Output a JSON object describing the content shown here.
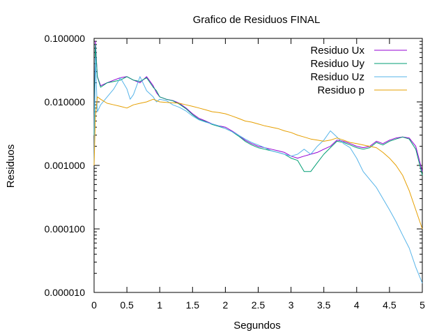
{
  "chart_data": {
    "type": "line",
    "title": "Grafico de Residuos FINAL",
    "xlabel": "Segundos",
    "ylabel": "Residuos",
    "xlim": [
      0,
      5
    ],
    "ylim": [
      1e-05,
      0.1
    ],
    "yscale": "log",
    "x_ticks": [
      "0",
      "0.5",
      "1",
      "1.5",
      "2",
      "2.5",
      "3",
      "3.5",
      "4",
      "4.5",
      "5"
    ],
    "y_ticks": [
      "0.000010",
      "0.000100",
      "0.001000",
      "0.010000",
      "0.100000"
    ],
    "legend_position": "top-right",
    "grid": false,
    "series": [
      {
        "name": "Residuo Ux",
        "color": "#9400d3",
        "x": [
          0.0,
          0.02,
          0.05,
          0.1,
          0.2,
          0.3,
          0.4,
          0.5,
          0.6,
          0.7,
          0.8,
          0.9,
          0.95,
          1.0,
          1.1,
          1.2,
          1.3,
          1.4,
          1.5,
          1.6,
          1.7,
          1.8,
          1.9,
          2.0,
          2.1,
          2.2,
          2.3,
          2.4,
          2.5,
          2.6,
          2.7,
          2.8,
          2.9,
          3.0,
          3.1,
          3.2,
          3.3,
          3.4,
          3.5,
          3.6,
          3.7,
          3.8,
          3.9,
          4.0,
          4.1,
          4.2,
          4.3,
          4.4,
          4.5,
          4.6,
          4.7,
          4.8,
          4.9,
          5.0
        ],
        "values": [
          0.003,
          0.09,
          0.025,
          0.018,
          0.02,
          0.022,
          0.024,
          0.025,
          0.022,
          0.02,
          0.025,
          0.018,
          0.014,
          0.012,
          0.011,
          0.0105,
          0.0095,
          0.008,
          0.0065,
          0.0055,
          0.005,
          0.0045,
          0.0042,
          0.004,
          0.0035,
          0.003,
          0.0025,
          0.0022,
          0.002,
          0.0019,
          0.0018,
          0.0017,
          0.0016,
          0.0014,
          0.0013,
          0.0014,
          0.0015,
          0.0016,
          0.0018,
          0.002,
          0.0025,
          0.0024,
          0.0022,
          0.002,
          0.0019,
          0.002,
          0.0024,
          0.0022,
          0.0025,
          0.0027,
          0.0028,
          0.0027,
          0.002,
          0.0008
        ]
      },
      {
        "name": "Residuo Uy",
        "color": "#009e73",
        "x": [
          0.0,
          0.02,
          0.05,
          0.1,
          0.2,
          0.3,
          0.4,
          0.5,
          0.6,
          0.7,
          0.8,
          0.9,
          0.95,
          1.0,
          1.1,
          1.2,
          1.3,
          1.4,
          1.5,
          1.6,
          1.7,
          1.8,
          1.9,
          2.0,
          2.1,
          2.2,
          2.3,
          2.4,
          2.5,
          2.6,
          2.7,
          2.8,
          2.9,
          3.0,
          3.1,
          3.2,
          3.3,
          3.4,
          3.5,
          3.6,
          3.7,
          3.8,
          3.9,
          4.0,
          4.1,
          4.2,
          4.3,
          4.4,
          4.5,
          4.6,
          4.7,
          4.8,
          4.9,
          5.0
        ],
        "values": [
          0.003,
          0.08,
          0.025,
          0.017,
          0.02,
          0.021,
          0.022,
          0.025,
          0.022,
          0.021,
          0.024,
          0.017,
          0.015,
          0.012,
          0.011,
          0.0104,
          0.0092,
          0.0078,
          0.0063,
          0.0053,
          0.0049,
          0.0044,
          0.0041,
          0.0038,
          0.0034,
          0.0029,
          0.0024,
          0.0021,
          0.0019,
          0.0018,
          0.0017,
          0.0016,
          0.0015,
          0.0013,
          0.0012,
          0.0008,
          0.0008,
          0.0011,
          0.0015,
          0.0019,
          0.0024,
          0.0023,
          0.0021,
          0.0019,
          0.0018,
          0.0019,
          0.0023,
          0.0021,
          0.0024,
          0.0026,
          0.0028,
          0.0026,
          0.0018,
          0.0007
        ]
      },
      {
        "name": "Residuo Uz",
        "color": "#56b4e9",
        "x": [
          0.0,
          0.02,
          0.05,
          0.1,
          0.2,
          0.3,
          0.4,
          0.5,
          0.55,
          0.6,
          0.7,
          0.8,
          0.9,
          0.95,
          1.0,
          1.1,
          1.2,
          1.3,
          1.4,
          1.5,
          1.6,
          1.7,
          1.8,
          1.9,
          2.0,
          2.1,
          2.2,
          2.3,
          2.4,
          2.5,
          2.6,
          2.7,
          2.8,
          2.9,
          3.0,
          3.1,
          3.2,
          3.3,
          3.4,
          3.5,
          3.6,
          3.7,
          3.8,
          3.9,
          4.0,
          4.1,
          4.2,
          4.3,
          4.4,
          4.5,
          4.6,
          4.7,
          4.8,
          4.9,
          5.0
        ],
        "values": [
          0.001,
          0.05,
          0.007,
          0.009,
          0.012,
          0.016,
          0.024,
          0.016,
          0.011,
          0.013,
          0.025,
          0.015,
          0.012,
          0.01,
          0.011,
          0.0105,
          0.009,
          0.0082,
          0.0072,
          0.006,
          0.0052,
          0.0048,
          0.0045,
          0.0042,
          0.0038,
          0.0034,
          0.003,
          0.0026,
          0.0023,
          0.0021,
          0.0019,
          0.0017,
          0.0016,
          0.0015,
          0.0014,
          0.0015,
          0.0018,
          0.0015,
          0.002,
          0.0025,
          0.0035,
          0.0028,
          0.0022,
          0.0019,
          0.0013,
          0.0008,
          0.0006,
          0.00045,
          0.0003,
          0.0002,
          0.00013,
          8e-05,
          5e-05,
          2.5e-05,
          1.4e-05
        ]
      },
      {
        "name": "Residuo p",
        "color": "#e69f00",
        "x": [
          0.0,
          0.02,
          0.05,
          0.1,
          0.2,
          0.3,
          0.4,
          0.5,
          0.6,
          0.7,
          0.8,
          0.9,
          1.0,
          1.1,
          1.2,
          1.3,
          1.4,
          1.5,
          1.6,
          1.7,
          1.8,
          1.9,
          2.0,
          2.1,
          2.2,
          2.3,
          2.4,
          2.5,
          2.6,
          2.7,
          2.8,
          2.9,
          3.0,
          3.1,
          3.2,
          3.3,
          3.4,
          3.5,
          3.6,
          3.7,
          3.8,
          3.9,
          4.0,
          4.1,
          4.2,
          4.3,
          4.4,
          4.5,
          4.6,
          4.7,
          4.8,
          4.9,
          5.0
        ],
        "values": [
          0.001,
          0.006,
          0.012,
          0.011,
          0.0095,
          0.009,
          0.0085,
          0.008,
          0.009,
          0.0095,
          0.01,
          0.011,
          0.01,
          0.0098,
          0.0097,
          0.0095,
          0.009,
          0.0085,
          0.008,
          0.0075,
          0.007,
          0.0068,
          0.0065,
          0.006,
          0.0055,
          0.005,
          0.0048,
          0.0045,
          0.0042,
          0.004,
          0.0038,
          0.0035,
          0.0033,
          0.003,
          0.0028,
          0.0026,
          0.0025,
          0.0024,
          0.0025,
          0.0027,
          0.0025,
          0.0023,
          0.0022,
          0.0021,
          0.002,
          0.0019,
          0.0016,
          0.0013,
          0.001,
          0.0007,
          0.0004,
          0.0002,
          0.0001
        ]
      }
    ]
  }
}
